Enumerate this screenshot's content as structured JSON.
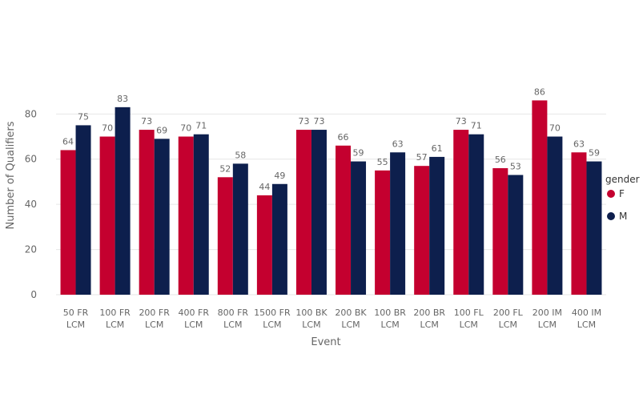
{
  "chart_data": {
    "type": "bar",
    "categories": [
      [
        "50 FR",
        "LCM"
      ],
      [
        "100 FR",
        "LCM"
      ],
      [
        "200 FR",
        "LCM"
      ],
      [
        "400 FR",
        "LCM"
      ],
      [
        "800 FR",
        "LCM"
      ],
      [
        "1500 FR",
        "LCM"
      ],
      [
        "100 BK",
        "LCM"
      ],
      [
        "200 BK",
        "LCM"
      ],
      [
        "100 BR",
        "LCM"
      ],
      [
        "200 BR",
        "LCM"
      ],
      [
        "100 FL",
        "LCM"
      ],
      [
        "200 FL",
        "LCM"
      ],
      [
        "200 IM",
        "LCM"
      ],
      [
        "400 IM",
        "LCM"
      ]
    ],
    "series": [
      {
        "name": "F",
        "color": "#c4002f",
        "values": [
          64,
          70,
          73,
          70,
          52,
          44,
          73,
          66,
          55,
          57,
          73,
          56,
          86,
          63
        ]
      },
      {
        "name": "M",
        "color": "#0d1f4d",
        "values": [
          75,
          83,
          69,
          71,
          58,
          49,
          73,
          59,
          63,
          61,
          71,
          53,
          70,
          59
        ]
      }
    ],
    "title": "",
    "xlabel": "Event",
    "ylabel": "Number of Qualifiers",
    "ylim": [
      0,
      95
    ],
    "yticks": [
      0,
      20,
      40,
      60,
      80
    ],
    "grid": true,
    "data_labels": true,
    "legend": {
      "title": "gender",
      "position": "right"
    }
  }
}
